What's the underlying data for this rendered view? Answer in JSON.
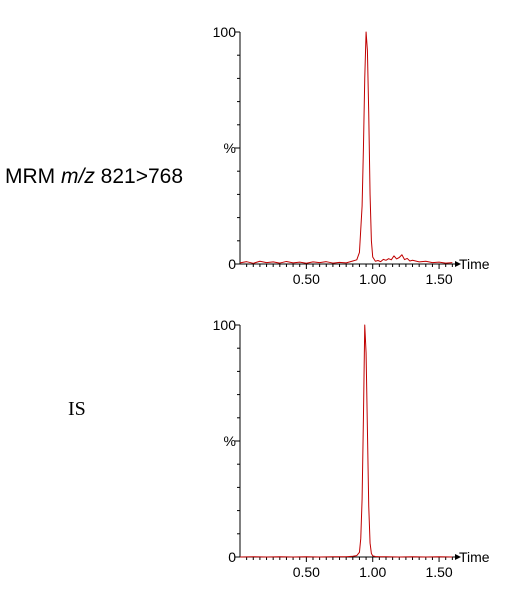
{
  "panels": [
    {
      "label_prefix": "MRM ",
      "label_italic": "m/z",
      "label_suffix": " 821>768",
      "chart_data": {
        "type": "line",
        "title": "",
        "xlabel": "Time",
        "ylabel": "%",
        "xlim": [
          0.0,
          1.62
        ],
        "ylim": [
          0,
          100
        ],
        "xticks": [
          "0.50",
          "1.00",
          "1.50"
        ],
        "xtick_values": [
          0.5,
          1.0,
          1.5
        ],
        "yticks": [
          "0",
          "%",
          "100"
        ],
        "ytick_values": [
          0,
          50,
          100
        ],
        "series": [
          {
            "color": "#c00000",
            "x": [
              0.0,
              0.05,
              0.1,
              0.15,
              0.2,
              0.25,
              0.3,
              0.35,
              0.4,
              0.45,
              0.5,
              0.55,
              0.6,
              0.65,
              0.7,
              0.75,
              0.8,
              0.85,
              0.88,
              0.9,
              0.92,
              0.93,
              0.94,
              0.95,
              0.96,
              0.97,
              0.98,
              0.99,
              1.0,
              1.02,
              1.04,
              1.06,
              1.08,
              1.1,
              1.12,
              1.14,
              1.16,
              1.18,
              1.2,
              1.22,
              1.24,
              1.26,
              1.28,
              1.3,
              1.35,
              1.4,
              1.45,
              1.5,
              1.55,
              1.6
            ],
            "y": [
              0.5,
              1.0,
              0.3,
              1.2,
              0.6,
              0.9,
              0.4,
              1.1,
              0.5,
              0.8,
              0.3,
              0.9,
              0.6,
              1.0,
              0.4,
              0.7,
              0.5,
              1.3,
              1.8,
              5.0,
              25.0,
              50.0,
              80.0,
              100.0,
              92.0,
              65.0,
              30.0,
              10.0,
              3.0,
              1.2,
              1.5,
              1.0,
              2.0,
              1.6,
              2.3,
              1.8,
              3.5,
              2.2,
              2.8,
              4.0,
              1.9,
              2.4,
              1.3,
              1.6,
              0.9,
              1.2,
              0.6,
              0.8,
              0.4,
              0.6
            ]
          }
        ]
      }
    },
    {
      "label_prefix": "IS",
      "label_italic": "",
      "label_suffix": "",
      "chart_data": {
        "type": "line",
        "title": "",
        "xlabel": "Time",
        "ylabel": "%",
        "xlim": [
          0.0,
          1.62
        ],
        "ylim": [
          0,
          100
        ],
        "xticks": [
          "0.50",
          "1.00",
          "1.50"
        ],
        "xtick_values": [
          0.5,
          1.0,
          1.5
        ],
        "yticks": [
          "0",
          "%",
          "100"
        ],
        "ytick_values": [
          0,
          50,
          100
        ],
        "series": [
          {
            "color": "#c00000",
            "x": [
              0.0,
              0.1,
              0.2,
              0.3,
              0.4,
              0.5,
              0.6,
              0.7,
              0.8,
              0.85,
              0.88,
              0.9,
              0.91,
              0.92,
              0.93,
              0.94,
              0.95,
              0.96,
              0.97,
              0.98,
              0.99,
              1.0,
              1.02,
              1.05,
              1.1,
              1.2,
              1.3,
              1.4,
              1.5,
              1.6
            ],
            "y": [
              0.0,
              0.1,
              0.0,
              0.1,
              0.0,
              0.1,
              0.0,
              0.1,
              0.1,
              0.3,
              0.6,
              2.0,
              8.0,
              25.0,
              60.0,
              100.0,
              88.0,
              55.0,
              22.0,
              6.0,
              1.5,
              0.5,
              0.2,
              0.1,
              0.1,
              0.0,
              0.1,
              0.0,
              0.1,
              0.0
            ]
          }
        ]
      }
    }
  ]
}
